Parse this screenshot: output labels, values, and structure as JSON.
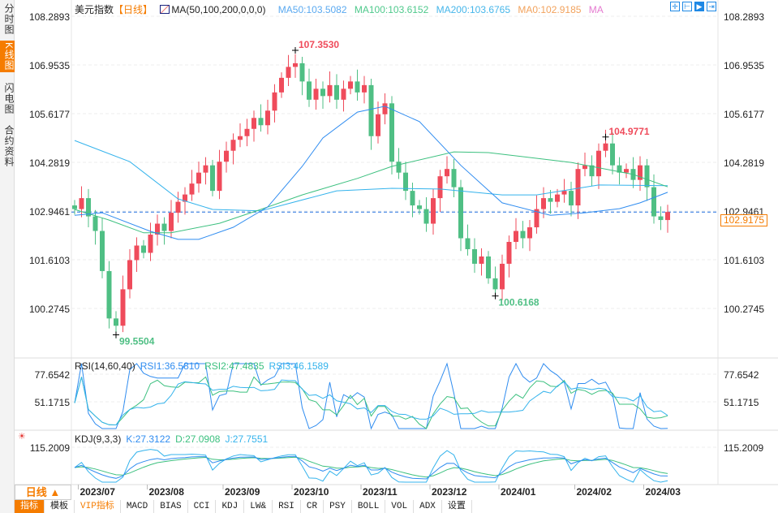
{
  "sidebar": {
    "tabs": [
      {
        "label": "分时图"
      },
      {
        "label": "K线图",
        "active": true
      },
      {
        "label": "闪电图"
      },
      {
        "label": "合约资料"
      }
    ]
  },
  "header": {
    "symbol": "美元指数",
    "period_tag": "【日线】",
    "ma_setting": "MA(50,100,200,0,0,0)",
    "ma50": "MA50:103.5082",
    "ma100": "MA100:103.6152",
    "ma200": "MA200:103.6765",
    "ma0": "MA0:102.9185",
    "ma_extra": "MA"
  },
  "toolbar_icons": [
    "crosshair-icon",
    "range-icon",
    "play-icon",
    "exit-icon"
  ],
  "colors": {
    "up": "#ef4b5b",
    "down": "#4fbf84",
    "ma50": "#2f8cf0",
    "ma100": "#3cc07f",
    "ma200": "#34b3ec",
    "accent": "#f57c00"
  },
  "price_axis": [
    "108.2893",
    "106.9535",
    "105.6177",
    "104.2819",
    "102.9461",
    "101.6103",
    "100.2745"
  ],
  "current_price": "102.9175",
  "chart_data": {
    "type": "candlestick",
    "title": "美元指数 日线",
    "ylim": [
      100.2745,
      108.2893
    ],
    "x_labels": [
      "2023/07",
      "2023/08",
      "2023/09",
      "2023/10",
      "2023/11",
      "2023/12",
      "2024/01",
      "2024/02",
      "2024/03"
    ],
    "x_label_index": [
      1,
      11,
      22,
      32,
      42,
      52,
      62,
      73,
      83
    ],
    "closes": [
      103.0,
      103.3,
      102.8,
      102.4,
      101.3,
      100.0,
      99.8,
      100.8,
      101.6,
      102.0,
      101.8,
      102.3,
      102.6,
      102.4,
      102.9,
      103.2,
      103.4,
      103.7,
      104.0,
      104.2,
      103.5,
      104.3,
      104.6,
      104.9,
      105.0,
      105.2,
      105.5,
      105.3,
      105.7,
      106.2,
      106.6,
      106.9,
      107.0,
      106.5,
      106.0,
      106.3,
      106.1,
      106.4,
      106.0,
      106.3,
      106.5,
      106.2,
      106.4,
      105.0,
      105.6,
      105.9,
      104.3,
      104.0,
      103.5,
      103.1,
      103.0,
      102.6,
      103.3,
      103.9,
      104.1,
      103.6,
      102.2,
      101.9,
      101.5,
      101.7,
      101.1,
      100.8,
      101.5,
      102.1,
      102.4,
      102.2,
      102.5,
      103.0,
      103.3,
      103.2,
      103.4,
      103.5,
      103.1,
      104.1,
      104.2,
      103.9,
      104.6,
      104.8,
      104.2,
      104.0,
      104.1,
      103.8,
      104.2,
      103.6,
      102.8,
      102.7,
      102.92
    ],
    "ma50": [
      [
        0,
        102.83
      ],
      [
        4,
        102.9
      ],
      [
        11,
        102.39
      ],
      [
        15,
        102.17
      ],
      [
        18,
        102.17
      ],
      [
        23,
        102.5
      ],
      [
        28,
        103.06
      ],
      [
        33,
        104.17
      ],
      [
        36,
        104.95
      ],
      [
        41,
        105.66
      ],
      [
        45,
        105.82
      ],
      [
        50,
        105.4
      ],
      [
        56,
        104.2
      ],
      [
        62,
        103.17
      ],
      [
        69,
        102.83
      ],
      [
        74,
        102.9
      ],
      [
        79,
        103.01
      ],
      [
        82,
        103.17
      ],
      [
        86,
        103.46
      ]
    ],
    "ma100": [
      [
        0,
        102.99
      ],
      [
        5,
        102.7
      ],
      [
        10,
        102.35
      ],
      [
        14,
        102.35
      ],
      [
        21,
        102.61
      ],
      [
        27,
        102.99
      ],
      [
        33,
        103.39
      ],
      [
        41,
        103.84
      ],
      [
        46,
        104.17
      ],
      [
        55,
        104.57
      ],
      [
        60,
        104.55
      ],
      [
        72,
        104.28
      ],
      [
        81,
        103.95
      ],
      [
        86,
        103.61
      ]
    ],
    "ma200": [
      [
        0,
        104.88
      ],
      [
        8,
        104.3
      ],
      [
        15,
        103.28
      ],
      [
        20,
        102.99
      ],
      [
        27,
        102.95
      ],
      [
        38,
        103.5
      ],
      [
        46,
        103.57
      ],
      [
        53,
        103.55
      ],
      [
        62,
        103.39
      ],
      [
        67,
        103.39
      ],
      [
        76,
        103.66
      ],
      [
        86,
        103.64
      ]
    ],
    "annotations": [
      {
        "label": "107.3530",
        "index": 32,
        "value": 107.353,
        "color": "#ef4b5b"
      },
      {
        "label": "99.5504",
        "index": 6,
        "value": 99.5504,
        "color": "#4fbf84"
      },
      {
        "label": "100.6168",
        "index": 61,
        "value": 100.6168,
        "color": "#4fbf84"
      },
      {
        "label": "104.9771",
        "index": 77,
        "value": 104.9771,
        "color": "#ef4b5b"
      }
    ],
    "rsi": {
      "title": "RSI(14,60,40)",
      "rsi1": "RSI1:36.5810",
      "rsi2": "RSI2:47.4835",
      "rsi3": "RSI3:46.1589",
      "ticks": [
        "77.6542",
        "51.1715"
      ]
    },
    "kdj": {
      "title": "KDJ(9,3,3)",
      "k": "K:27.3122",
      "d": "D:27.0908",
      "j": "J:27.7551",
      "ticks": [
        "115.2009"
      ]
    }
  },
  "footer": {
    "period": "日线 ▲",
    "tabs": [
      "指标",
      "模板",
      "VIP指标",
      "MACD",
      "BIAS",
      "CCI",
      "KDJ",
      "LW&",
      "RSI",
      "CR",
      "PSY",
      "BOLL",
      "VOL",
      "ADX",
      "设置"
    ]
  }
}
